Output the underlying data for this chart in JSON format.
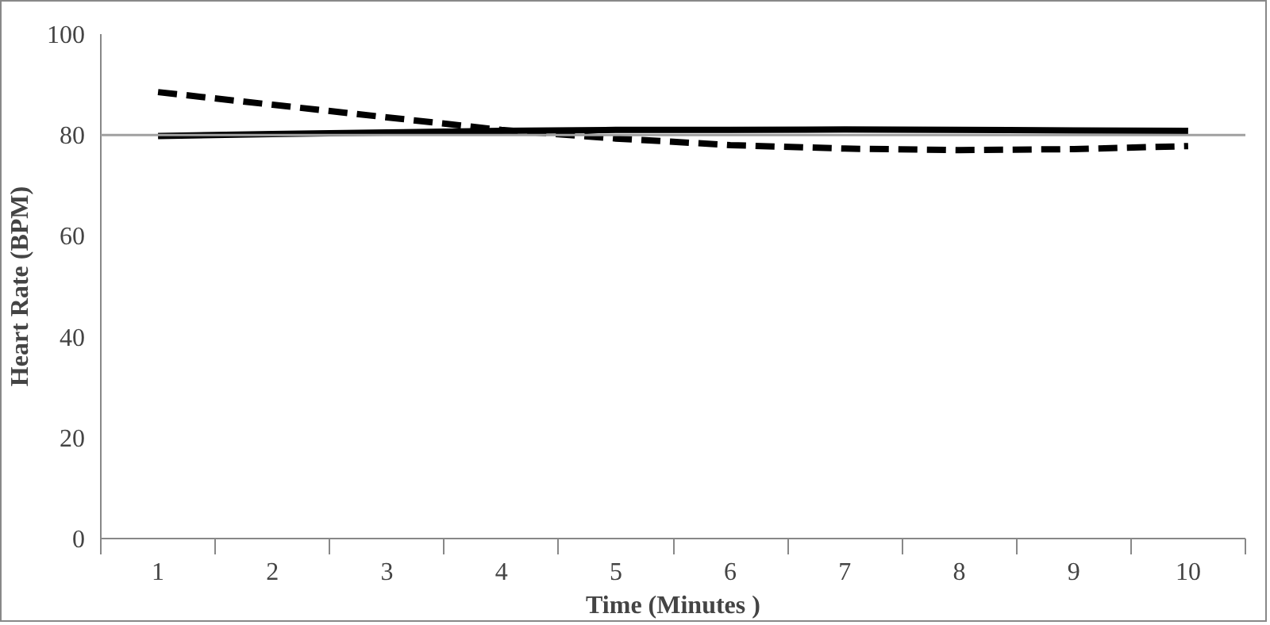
{
  "chart_data": {
    "type": "line",
    "xlabel": "Time (Minutes )",
    "ylabel": "Heart Rate (BPM)",
    "categories": [
      "1",
      "2",
      "3",
      "4",
      "5",
      "6",
      "7",
      "8",
      "9",
      "10"
    ],
    "series": [
      {
        "color": "#000000",
        "line_style": "solid",
        "values": [
          79.8,
          80.2,
          80.5,
          80.8,
          81,
          81,
          81.1,
          81,
          80.9,
          80.8
        ]
      },
      {
        "color": "#000000",
        "line_style": "dashed",
        "values": [
          88.5,
          86,
          83.5,
          81,
          79.3,
          78,
          77.3,
          77,
          77.2,
          77.8
        ]
      }
    ],
    "ylim": [
      0,
      100
    ],
    "yticks": [
      0,
      20,
      40,
      60,
      80,
      100
    ],
    "ref_lines": [
      {
        "axis": "y",
        "value": 80,
        "color": "#a0a0a0"
      }
    ],
    "grid": false,
    "marker": "none"
  }
}
